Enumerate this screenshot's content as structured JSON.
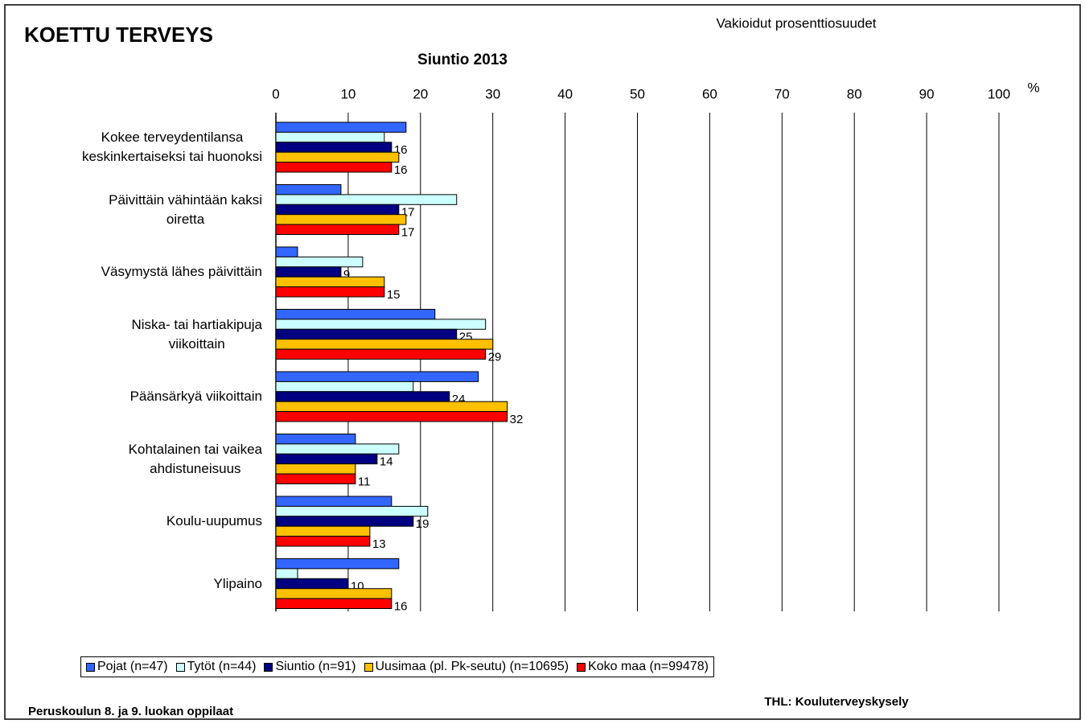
{
  "chart_data": {
    "type": "hbar",
    "title": "KOETTU TERVEYS",
    "subtitle": "Siuntio 2013",
    "note": "Vakioidut prosenttiosuudet",
    "x_unit": "%",
    "footer_left": "Peruskoulun 8. ja 9. luokan oppilaat",
    "footer_right": "THL: Kouluterveyskysely",
    "categories": [
      "Kokee terveydentilansa\nkeskinkertaiseksi tai huonoksi",
      "Päivittäin vähintään kaksi\noiretta",
      "Väsymystä lähes päivittäin",
      "Niska- tai hartiakipuja\nviikoittain",
      "Päänsärkyä viikoittain",
      "Kohtalainen tai vaikea\nahdistuneisuus",
      "Koulu-uupumus",
      "Ylipaino"
    ],
    "series": [
      {
        "name": "Pojat (n=47)",
        "color": "#3366ff",
        "show_labels": false,
        "values": [
          18,
          9,
          3,
          22,
          28,
          11,
          16,
          17
        ]
      },
      {
        "name": "Tytöt (n=44)",
        "color": "#ccffff",
        "show_labels": false,
        "values": [
          15,
          25,
          12,
          29,
          19,
          17,
          21,
          3
        ]
      },
      {
        "name": "Siuntio (n=91)",
        "color": "#000080",
        "show_labels": true,
        "values": [
          16,
          17,
          9,
          25,
          24,
          14,
          19,
          10
        ]
      },
      {
        "name": "Uusimaa (pl. Pk-seutu) (n=10695)",
        "color": "#ffc000",
        "show_labels": false,
        "values": [
          17,
          18,
          15,
          30,
          32,
          11,
          13,
          16
        ]
      },
      {
        "name": "Koko maa (n=99478)",
        "color": "#ff0000",
        "show_labels": true,
        "values": [
          16,
          17,
          15,
          29,
          32,
          11,
          13,
          16
        ]
      }
    ],
    "xlim": [
      0,
      100
    ],
    "xticks": [
      0,
      10,
      20,
      30,
      40,
      50,
      60,
      70,
      80,
      90,
      100
    ],
    "grid": true
  }
}
